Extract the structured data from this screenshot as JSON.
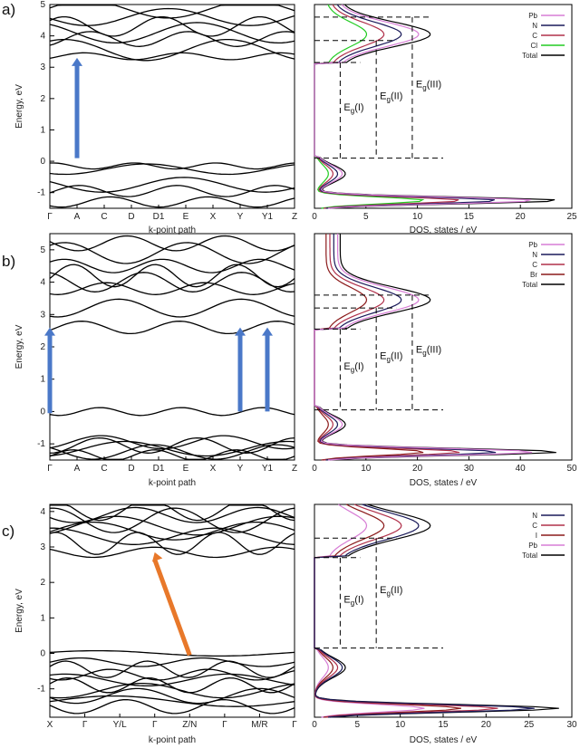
{
  "panels": [
    {
      "label": "a)"
    },
    {
      "label": "b)"
    },
    {
      "label": "c)"
    }
  ],
  "chart_data": [
    {
      "type": "line",
      "panel": "a)",
      "subplot": "band-structure",
      "xlabel": "k-point path",
      "ylabel": "Energy, eV",
      "ylim": [
        -1.5,
        5
      ],
      "yticks": [
        -1,
        0,
        1,
        2,
        3,
        4,
        5
      ],
      "kpoints": [
        "Γ",
        "A",
        "C",
        "D",
        "D1",
        "E",
        "X",
        "Y",
        "Y1",
        "Z"
      ],
      "bands_valence": [
        -0.15,
        -0.25,
        -0.75,
        -0.95,
        -1.3
      ],
      "bands_conduction": [
        3.35,
        3.55,
        3.9,
        4.1,
        4.3,
        4.6,
        4.85
      ],
      "gap_arrow": {
        "from_k": "A",
        "from_e": 0.1,
        "to_k": "A",
        "to_e": 3.3,
        "color": "#4a78c8"
      }
    },
    {
      "type": "line",
      "panel": "a)",
      "subplot": "dos",
      "xlabel": "DOS, states / eV",
      "xlim": [
        0,
        25
      ],
      "xticks": [
        0,
        5,
        10,
        15,
        20,
        25
      ],
      "ylim": [
        -1.5,
        5
      ],
      "series": [
        {
          "name": "Pb",
          "color": "#d77dd5"
        },
        {
          "name": "N",
          "color": "#1a1a5a"
        },
        {
          "name": "C",
          "color": "#b0304a"
        },
        {
          "name": "Cl",
          "color": "#22cc22"
        },
        {
          "name": "Total",
          "color": "#000000"
        }
      ],
      "gaps": [
        {
          "label": "E",
          "sub": "g",
          "suffix": "(I)",
          "lower": 0.1,
          "upper": 3.15
        },
        {
          "label": "E",
          "sub": "g",
          "suffix": "(II)",
          "lower": 0.1,
          "upper": 3.85
        },
        {
          "label": "E",
          "sub": "g",
          "suffix": "(III)",
          "lower": 0.1,
          "upper": 4.6
        }
      ]
    },
    {
      "type": "line",
      "panel": "b)",
      "subplot": "band-structure",
      "xlabel": "k-point path",
      "ylabel": "Energy, eV",
      "ylim": [
        -1.5,
        5.5
      ],
      "yticks": [
        -1,
        0,
        1,
        2,
        3,
        4,
        5
      ],
      "kpoints": [
        "Γ",
        "A",
        "C",
        "D",
        "D1",
        "E",
        "X",
        "Y",
        "Y1",
        "Z"
      ],
      "bands_valence": [
        0.0,
        -0.95,
        -1.05,
        -1.15,
        -1.25,
        -1.35
      ],
      "bands_conduction": [
        2.6,
        3.2,
        3.8,
        4.0,
        4.2,
        4.5,
        4.9,
        5.2
      ],
      "gap_arrows": [
        {
          "from_k": "Γ",
          "from_e": -0.05,
          "to_e": 2.6,
          "color": "#4a78c8"
        },
        {
          "from_k": "Y",
          "from_e": 0.0,
          "to_e": 2.6,
          "color": "#4a78c8"
        },
        {
          "from_k": "Y1",
          "from_e": 0.0,
          "to_e": 2.6,
          "color": "#4a78c8"
        }
      ]
    },
    {
      "type": "line",
      "panel": "b)",
      "subplot": "dos",
      "xlabel": "DOS, states / eV",
      "xlim": [
        0,
        50
      ],
      "xticks": [
        0,
        10,
        20,
        30,
        40,
        50
      ],
      "ylim": [
        -1.5,
        5.5
      ],
      "series": [
        {
          "name": "Pb",
          "color": "#d77dd5"
        },
        {
          "name": "N",
          "color": "#1a1a5a"
        },
        {
          "name": "C",
          "color": "#b0304a"
        },
        {
          "name": "Br",
          "color": "#8b1a1a"
        },
        {
          "name": "Total",
          "color": "#000000"
        }
      ],
      "gaps": [
        {
          "label": "E",
          "sub": "g",
          "suffix": "(I)",
          "lower": 0.05,
          "upper": 2.55
        },
        {
          "label": "E",
          "sub": "g",
          "suffix": "(II)",
          "lower": 0.05,
          "upper": 3.2
        },
        {
          "label": "E",
          "sub": "g",
          "suffix": "(III)",
          "lower": 0.05,
          "upper": 3.6
        }
      ]
    },
    {
      "type": "line",
      "panel": "c)",
      "subplot": "band-structure",
      "xlabel": "k-point path",
      "ylabel": "Energy, eV",
      "ylim": [
        -1.8,
        4.2
      ],
      "yticks": [
        -1,
        0,
        1,
        2,
        3,
        4
      ],
      "kpoints": [
        "X",
        "Γ",
        "Y/L",
        "Γ",
        "Z/N",
        "Γ",
        "M/R",
        "Γ"
      ],
      "bands_valence": [
        0.0,
        -0.25,
        -0.45,
        -0.6,
        -0.75,
        -0.9,
        -1.05,
        -1.2,
        -1.35,
        -1.5
      ],
      "bands_conduction": [
        2.85,
        3.1,
        3.3,
        3.45,
        3.6,
        3.75,
        3.9,
        4.05
      ],
      "gap_arrow": {
        "from_k": "Z/N",
        "from_e": -0.05,
        "to_k": "Γ",
        "to_e": 2.85,
        "color": "#e8782a"
      }
    },
    {
      "type": "line",
      "panel": "c)",
      "subplot": "dos",
      "xlabel": "DOS, states / eV",
      "xlim": [
        0,
        30
      ],
      "xticks": [
        0,
        5,
        10,
        15,
        20,
        25,
        30
      ],
      "ylim": [
        -1.8,
        4.2
      ],
      "series": [
        {
          "name": "N",
          "color": "#1a1a5a"
        },
        {
          "name": "C",
          "color": "#b0304a"
        },
        {
          "name": "I",
          "color": "#8b1a1a"
        },
        {
          "name": "Pb",
          "color": "#d77dd5"
        },
        {
          "name": "Total",
          "color": "#000000"
        }
      ],
      "gaps": [
        {
          "label": "E",
          "sub": "g",
          "suffix": "(I)",
          "lower": 0.15,
          "upper": 2.7
        },
        {
          "label": "E",
          "sub": "g",
          "suffix": "(II)",
          "lower": 0.15,
          "upper": 3.25
        }
      ]
    }
  ]
}
